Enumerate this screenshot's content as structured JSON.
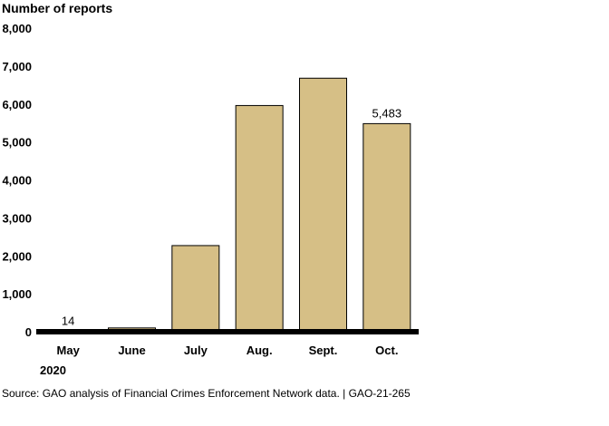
{
  "chart_data": {
    "type": "bar",
    "ylabel": "Number of reports",
    "categories": [
      "May",
      "June",
      "July",
      "Aug.",
      "Sept.",
      "Oct."
    ],
    "year_label": "2020",
    "values": [
      14,
      100,
      2270,
      5960,
      6680,
      5483
    ],
    "data_labels": [
      {
        "category": "May",
        "text": "14"
      },
      {
        "category": "Oct.",
        "text": "5,483"
      }
    ],
    "ylim": [
      0,
      8000
    ],
    "yticks": [
      0,
      1000,
      2000,
      3000,
      4000,
      5000,
      6000,
      7000,
      8000
    ],
    "ytick_labels": [
      "0",
      "1,000",
      "2,000",
      "3,000",
      "4,000",
      "5,000",
      "6,000",
      "7,000",
      "8,000"
    ],
    "grid": false,
    "bar_color": "#d6bf86",
    "bar_edge_color": "#000000"
  },
  "source": "Source: GAO analysis of Financial Crimes Enforcement Network data.  |  GAO-21-265"
}
